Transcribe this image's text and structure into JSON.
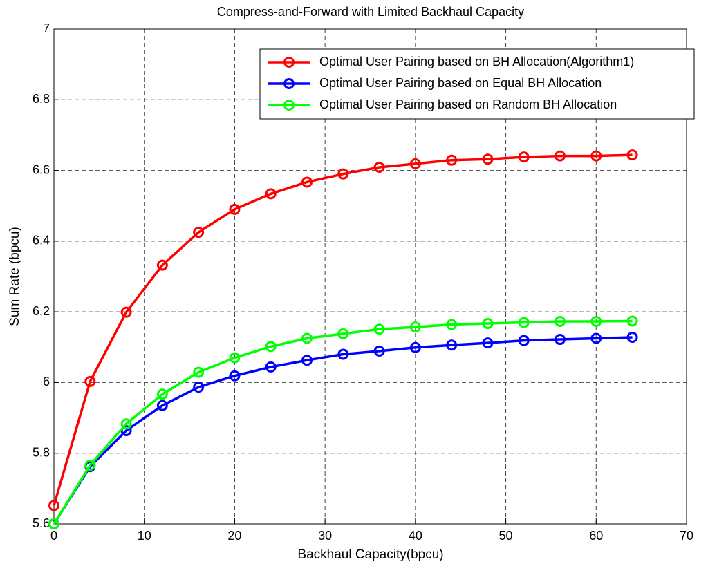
{
  "chart_data": {
    "type": "line",
    "title": "Compress-and-Forward with Limited Backhaul Capacity",
    "x_label": "Backhaul Capacity(bpcu)",
    "y_label": "Sum Rate (bpcu)",
    "x": [
      0,
      4,
      8,
      12,
      16,
      20,
      24,
      28,
      32,
      36,
      40,
      44,
      48,
      52,
      56,
      60,
      64
    ],
    "series": [
      {
        "name": "Optimal User Pairing based on BH Allocation(Algorithm1)",
        "color": "#ff0000",
        "values": [
          5.652,
          6.003,
          6.199,
          6.332,
          6.425,
          6.49,
          6.534,
          6.567,
          6.59,
          6.609,
          6.619,
          6.629,
          6.632,
          6.638,
          6.641,
          6.641,
          6.644
        ]
      },
      {
        "name": "Optimal User Pairing based on Equal BH Allocation",
        "color": "#0000ff",
        "values": [
          5.6,
          5.762,
          5.864,
          5.935,
          5.987,
          6.019,
          6.044,
          6.063,
          6.08,
          6.089,
          6.099,
          6.106,
          6.112,
          6.119,
          6.122,
          6.125,
          6.128
        ]
      },
      {
        "name": "Optimal User Pairing based on Random BH Allocation",
        "color": "#00ff00",
        "values": [
          5.6,
          5.766,
          5.883,
          5.967,
          6.029,
          6.07,
          6.102,
          6.125,
          6.138,
          6.151,
          6.157,
          6.164,
          6.167,
          6.17,
          6.173,
          6.173,
          6.174
        ]
      }
    ],
    "xlim": [
      0,
      70
    ],
    "xticks": [
      0,
      10,
      20,
      30,
      40,
      50,
      60,
      70
    ],
    "ylim": [
      5.6,
      7
    ],
    "yticks": [
      5.6,
      5.8,
      6,
      6.2,
      6.4,
      6.6,
      6.8,
      7
    ],
    "grid": true,
    "legend": "top-right"
  }
}
